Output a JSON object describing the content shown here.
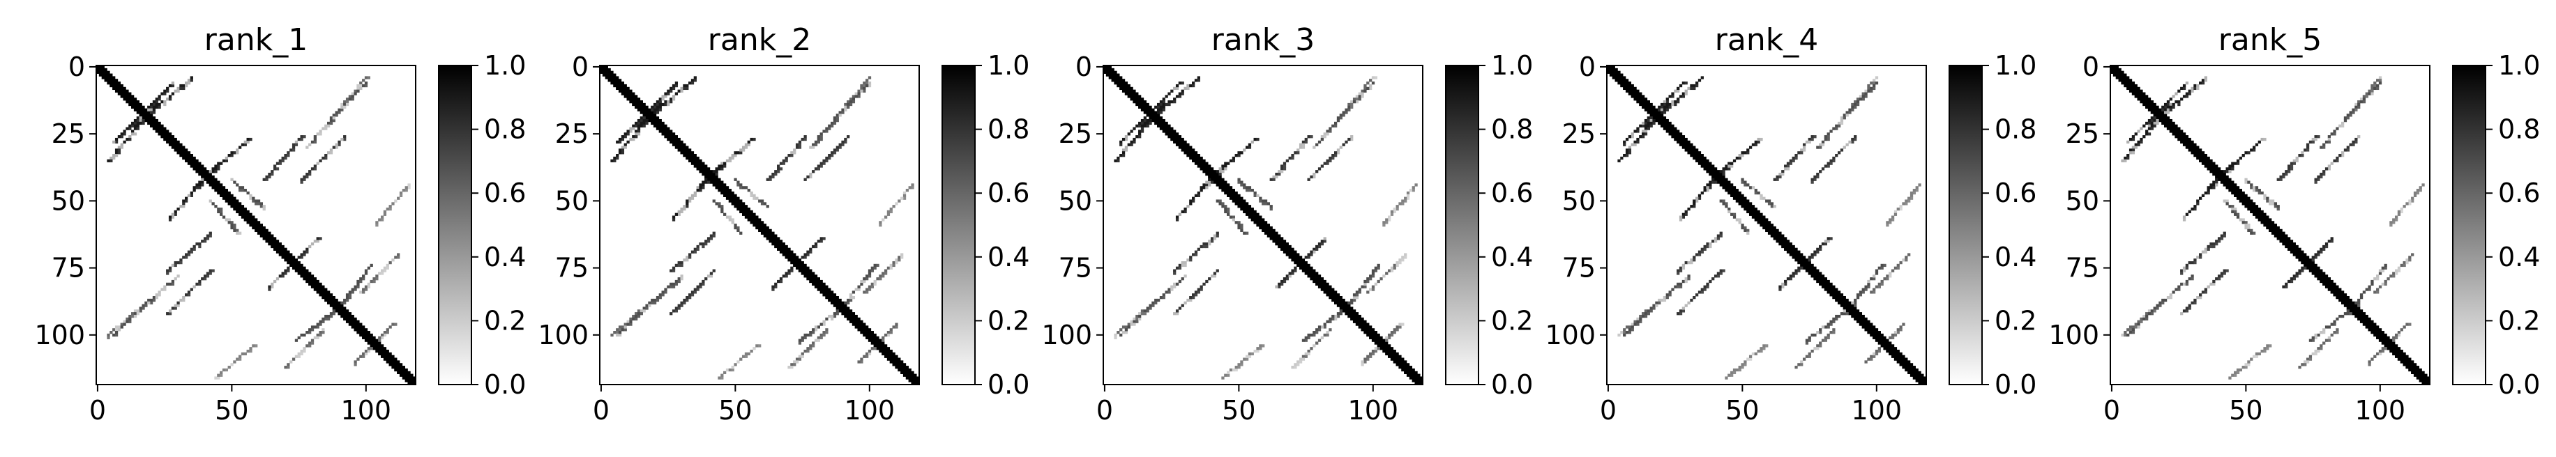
{
  "chart_data": [
    {
      "type": "heatmap",
      "title": "rank_1",
      "matrix_size": 119,
      "xlim": [
        0,
        118
      ],
      "ylim": [
        118,
        0
      ],
      "x_ticks": [
        0,
        50,
        100
      ],
      "y_ticks": [
        0,
        25,
        50,
        75,
        100
      ],
      "colorbar": {
        "range": [
          0.0,
          1.0
        ],
        "ticks": [
          "0.0",
          "0.2",
          "0.4",
          "0.6",
          "0.8",
          "1.0"
        ],
        "colormap": "Greys"
      },
      "contact_segments": [
        {
          "from": [
            0,
            0
          ],
          "to": [
            118,
            118
          ],
          "value": 1.0
        },
        {
          "from": [
            22,
            12
          ],
          "to": [
            6,
            28
          ],
          "value": 0.9
        },
        {
          "from": [
            45,
            36
          ],
          "to": [
            27,
            56
          ],
          "value": 0.9
        },
        {
          "from": [
            50,
            42
          ],
          "to": [
            62,
            52
          ],
          "value": 0.7
        },
        {
          "from": [
            78,
            68
          ],
          "to": [
            64,
            82
          ],
          "value": 0.85
        },
        {
          "from": [
            92,
            88
          ],
          "to": [
            74,
            102
          ],
          "value": 0.7
        },
        {
          "from": [
            108,
            98
          ],
          "to": [
            96,
            110
          ],
          "value": 0.6
        },
        {
          "from": [
            14,
            22
          ],
          "to": [
            35,
            4
          ],
          "value": 0.9
        },
        {
          "from": [
            26,
            76
          ],
          "to": [
            42,
            62
          ],
          "value": 0.8
        },
        {
          "from": [
            16,
            90
          ],
          "to": [
            30,
            78
          ],
          "value": 0.7
        },
        {
          "from": [
            4,
            100
          ],
          "to": [
            18,
            88
          ],
          "value": 0.6
        },
        {
          "from": [
            92,
            26
          ],
          "to": [
            76,
            42
          ],
          "value": 0.8
        },
        {
          "from": [
            100,
            6
          ],
          "to": [
            88,
            18
          ],
          "value": 0.7
        },
        {
          "from": [
            116,
            44
          ],
          "to": [
            104,
            58
          ],
          "value": 0.5
        },
        {
          "from": [
            98,
            84
          ],
          "to": [
            112,
            70
          ],
          "value": 0.6
        }
      ]
    },
    {
      "type": "heatmap",
      "title": "rank_2",
      "matrix_size": 119,
      "xlim": [
        0,
        118
      ],
      "ylim": [
        118,
        0
      ],
      "x_ticks": [
        0,
        50,
        100
      ],
      "y_ticks": [
        0,
        25,
        50,
        75,
        100
      ],
      "colorbar": {
        "range": [
          0.0,
          1.0
        ],
        "ticks": [
          "0.0",
          "0.2",
          "0.4",
          "0.6",
          "0.8",
          "1.0"
        ],
        "colormap": "Greys"
      },
      "contact_segments": [
        {
          "from": [
            0,
            0
          ],
          "to": [
            118,
            118
          ],
          "value": 1.0
        },
        {
          "from": [
            22,
            12
          ],
          "to": [
            6,
            28
          ],
          "value": 0.9
        },
        {
          "from": [
            45,
            36
          ],
          "to": [
            27,
            56
          ],
          "value": 0.9
        },
        {
          "from": [
            50,
            42
          ],
          "to": [
            62,
            52
          ],
          "value": 0.7
        },
        {
          "from": [
            78,
            68
          ],
          "to": [
            64,
            82
          ],
          "value": 0.85
        },
        {
          "from": [
            92,
            88
          ],
          "to": [
            74,
            102
          ],
          "value": 0.7
        },
        {
          "from": [
            108,
            98
          ],
          "to": [
            96,
            110
          ],
          "value": 0.6
        },
        {
          "from": [
            14,
            22
          ],
          "to": [
            35,
            4
          ],
          "value": 0.9
        },
        {
          "from": [
            26,
            76
          ],
          "to": [
            42,
            62
          ],
          "value": 0.8
        },
        {
          "from": [
            16,
            90
          ],
          "to": [
            30,
            78
          ],
          "value": 0.7
        },
        {
          "from": [
            4,
            100
          ],
          "to": [
            18,
            88
          ],
          "value": 0.6
        },
        {
          "from": [
            92,
            26
          ],
          "to": [
            76,
            42
          ],
          "value": 0.8
        },
        {
          "from": [
            100,
            6
          ],
          "to": [
            88,
            18
          ],
          "value": 0.7
        },
        {
          "from": [
            116,
            44
          ],
          "to": [
            104,
            58
          ],
          "value": 0.5
        },
        {
          "from": [
            98,
            84
          ],
          "to": [
            112,
            70
          ],
          "value": 0.6
        }
      ]
    },
    {
      "type": "heatmap",
      "title": "rank_3",
      "matrix_size": 119,
      "xlim": [
        0,
        118
      ],
      "ylim": [
        118,
        0
      ],
      "x_ticks": [
        0,
        50,
        100
      ],
      "y_ticks": [
        0,
        25,
        50,
        75,
        100
      ],
      "colorbar": {
        "range": [
          0.0,
          1.0
        ],
        "ticks": [
          "0.0",
          "0.2",
          "0.4",
          "0.6",
          "0.8",
          "1.0"
        ],
        "colormap": "Greys"
      },
      "contact_segments": [
        {
          "from": [
            0,
            0
          ],
          "to": [
            118,
            118
          ],
          "value": 1.0
        },
        {
          "from": [
            22,
            12
          ],
          "to": [
            6,
            28
          ],
          "value": 0.9
        },
        {
          "from": [
            45,
            36
          ],
          "to": [
            27,
            56
          ],
          "value": 0.9
        },
        {
          "from": [
            50,
            42
          ],
          "to": [
            62,
            52
          ],
          "value": 0.7
        },
        {
          "from": [
            78,
            68
          ],
          "to": [
            64,
            82
          ],
          "value": 0.85
        },
        {
          "from": [
            92,
            88
          ],
          "to": [
            74,
            102
          ],
          "value": 0.7
        },
        {
          "from": [
            108,
            98
          ],
          "to": [
            96,
            110
          ],
          "value": 0.6
        },
        {
          "from": [
            14,
            22
          ],
          "to": [
            35,
            4
          ],
          "value": 0.9
        },
        {
          "from": [
            26,
            76
          ],
          "to": [
            42,
            62
          ],
          "value": 0.8
        },
        {
          "from": [
            16,
            90
          ],
          "to": [
            30,
            78
          ],
          "value": 0.7
        },
        {
          "from": [
            4,
            100
          ],
          "to": [
            18,
            88
          ],
          "value": 0.6
        },
        {
          "from": [
            92,
            26
          ],
          "to": [
            76,
            42
          ],
          "value": 0.8
        },
        {
          "from": [
            100,
            6
          ],
          "to": [
            88,
            18
          ],
          "value": 0.7
        },
        {
          "from": [
            116,
            44
          ],
          "to": [
            104,
            58
          ],
          "value": 0.5
        },
        {
          "from": [
            98,
            84
          ],
          "to": [
            112,
            70
          ],
          "value": 0.6
        }
      ]
    },
    {
      "type": "heatmap",
      "title": "rank_4",
      "matrix_size": 119,
      "xlim": [
        0,
        118
      ],
      "ylim": [
        118,
        0
      ],
      "x_ticks": [
        0,
        50,
        100
      ],
      "y_ticks": [
        0,
        25,
        50,
        75,
        100
      ],
      "colorbar": {
        "range": [
          0.0,
          1.0
        ],
        "ticks": [
          "0.0",
          "0.2",
          "0.4",
          "0.6",
          "0.8",
          "1.0"
        ],
        "colormap": "Greys"
      },
      "contact_segments": [
        {
          "from": [
            0,
            0
          ],
          "to": [
            118,
            118
          ],
          "value": 1.0
        },
        {
          "from": [
            22,
            12
          ],
          "to": [
            6,
            28
          ],
          "value": 0.9
        },
        {
          "from": [
            45,
            36
          ],
          "to": [
            27,
            56
          ],
          "value": 0.9
        },
        {
          "from": [
            50,
            42
          ],
          "to": [
            62,
            52
          ],
          "value": 0.7
        },
        {
          "from": [
            78,
            68
          ],
          "to": [
            64,
            82
          ],
          "value": 0.85
        },
        {
          "from": [
            92,
            88
          ],
          "to": [
            74,
            102
          ],
          "value": 0.7
        },
        {
          "from": [
            108,
            98
          ],
          "to": [
            96,
            110
          ],
          "value": 0.6
        },
        {
          "from": [
            14,
            22
          ],
          "to": [
            35,
            4
          ],
          "value": 0.9
        },
        {
          "from": [
            26,
            76
          ],
          "to": [
            42,
            62
          ],
          "value": 0.8
        },
        {
          "from": [
            16,
            90
          ],
          "to": [
            30,
            78
          ],
          "value": 0.7
        },
        {
          "from": [
            4,
            100
          ],
          "to": [
            18,
            88
          ],
          "value": 0.6
        },
        {
          "from": [
            92,
            26
          ],
          "to": [
            76,
            42
          ],
          "value": 0.8
        },
        {
          "from": [
            100,
            6
          ],
          "to": [
            88,
            18
          ],
          "value": 0.7
        },
        {
          "from": [
            116,
            44
          ],
          "to": [
            104,
            58
          ],
          "value": 0.5
        },
        {
          "from": [
            98,
            84
          ],
          "to": [
            112,
            70
          ],
          "value": 0.6
        }
      ]
    },
    {
      "type": "heatmap",
      "title": "rank_5",
      "matrix_size": 119,
      "xlim": [
        0,
        118
      ],
      "ylim": [
        118,
        0
      ],
      "x_ticks": [
        0,
        50,
        100
      ],
      "y_ticks": [
        0,
        25,
        50,
        75,
        100
      ],
      "colorbar": {
        "range": [
          0.0,
          1.0
        ],
        "ticks": [
          "0.0",
          "0.2",
          "0.4",
          "0.6",
          "0.8",
          "1.0"
        ],
        "colormap": "Greys"
      },
      "contact_segments": [
        {
          "from": [
            0,
            0
          ],
          "to": [
            118,
            118
          ],
          "value": 1.0
        },
        {
          "from": [
            22,
            12
          ],
          "to": [
            6,
            28
          ],
          "value": 0.9
        },
        {
          "from": [
            45,
            36
          ],
          "to": [
            27,
            56
          ],
          "value": 0.9
        },
        {
          "from": [
            50,
            42
          ],
          "to": [
            62,
            52
          ],
          "value": 0.7
        },
        {
          "from": [
            78,
            68
          ],
          "to": [
            64,
            82
          ],
          "value": 0.85
        },
        {
          "from": [
            92,
            88
          ],
          "to": [
            74,
            102
          ],
          "value": 0.7
        },
        {
          "from": [
            108,
            98
          ],
          "to": [
            96,
            110
          ],
          "value": 0.6
        },
        {
          "from": [
            14,
            22
          ],
          "to": [
            35,
            4
          ],
          "value": 0.9
        },
        {
          "from": [
            26,
            76
          ],
          "to": [
            42,
            62
          ],
          "value": 0.8
        },
        {
          "from": [
            16,
            90
          ],
          "to": [
            30,
            78
          ],
          "value": 0.7
        },
        {
          "from": [
            4,
            100
          ],
          "to": [
            18,
            88
          ],
          "value": 0.6
        },
        {
          "from": [
            92,
            26
          ],
          "to": [
            76,
            42
          ],
          "value": 0.8
        },
        {
          "from": [
            100,
            6
          ],
          "to": [
            88,
            18
          ],
          "value": 0.7
        },
        {
          "from": [
            116,
            44
          ],
          "to": [
            104,
            58
          ],
          "value": 0.5
        },
        {
          "from": [
            98,
            84
          ],
          "to": [
            112,
            70
          ],
          "value": 0.6
        }
      ]
    }
  ]
}
